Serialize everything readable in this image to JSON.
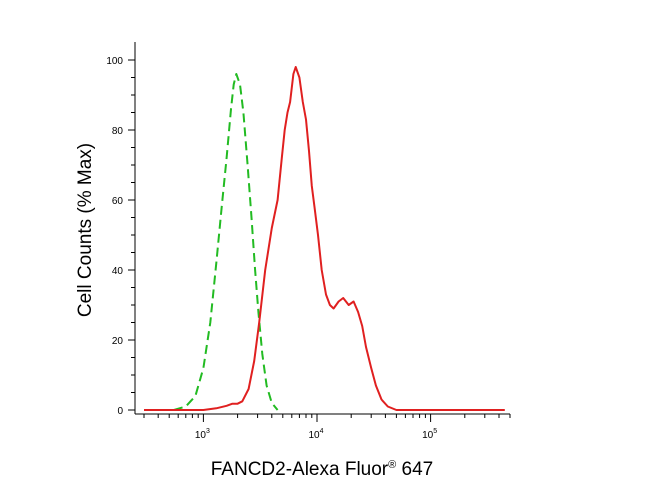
{
  "chart_data": {
    "type": "line",
    "xlabel": "FANCD2-Alexa Fluor",
    "xlabel_reg": "®",
    "xlabel_suffix": " 647",
    "ylabel": "Cell Counts (% Max)",
    "xscale": "log",
    "xlim": [
      250,
      500000
    ],
    "ylim": [
      0,
      100
    ],
    "yticks": [
      {
        "value": 0,
        "label": "0"
      },
      {
        "value": 20,
        "label": "20"
      },
      {
        "value": 40,
        "label": "40"
      },
      {
        "value": 60,
        "label": "60"
      },
      {
        "value": 80,
        "label": "80"
      },
      {
        "value": 100,
        "label": "100"
      }
    ],
    "xticks": [
      {
        "value": 1000,
        "base": "10",
        "exp": "3"
      },
      {
        "value": 10000,
        "base": "10",
        "exp": "4"
      },
      {
        "value": 100000,
        "base": "10",
        "exp": "5"
      }
    ],
    "grid": false,
    "legend": "none",
    "series": [
      {
        "color": "#22bb22",
        "style": "dashed",
        "points": [
          [
            550,
            0
          ],
          [
            700,
            1
          ],
          [
            850,
            4
          ],
          [
            1000,
            12
          ],
          [
            1150,
            25
          ],
          [
            1300,
            42
          ],
          [
            1450,
            58
          ],
          [
            1600,
            72
          ],
          [
            1750,
            86
          ],
          [
            1850,
            93
          ],
          [
            1950,
            96
          ],
          [
            2100,
            93
          ],
          [
            2250,
            85
          ],
          [
            2450,
            70
          ],
          [
            2650,
            55
          ],
          [
            2850,
            40
          ],
          [
            3050,
            28
          ],
          [
            3300,
            16
          ],
          [
            3600,
            7
          ],
          [
            4000,
            2
          ],
          [
            4500,
            0
          ]
        ]
      },
      {
        "color": "#e02020",
        "style": "solid",
        "points": [
          [
            300,
            0
          ],
          [
            1000,
            0
          ],
          [
            1300,
            0.5
          ],
          [
            1600,
            1.2
          ],
          [
            1800,
            1.8
          ],
          [
            2000,
            1.8
          ],
          [
            2200,
            2.5
          ],
          [
            2500,
            6
          ],
          [
            2800,
            14
          ],
          [
            3100,
            25
          ],
          [
            3500,
            40
          ],
          [
            4000,
            52
          ],
          [
            4500,
            60
          ],
          [
            4900,
            72
          ],
          [
            5200,
            80
          ],
          [
            5500,
            85
          ],
          [
            5800,
            88
          ],
          [
            6200,
            96
          ],
          [
            6500,
            98
          ],
          [
            7000,
            95
          ],
          [
            7500,
            88
          ],
          [
            8000,
            83
          ],
          [
            8500,
            74
          ],
          [
            9000,
            64
          ],
          [
            9500,
            58
          ],
          [
            10200,
            50
          ],
          [
            11000,
            40
          ],
          [
            12000,
            33
          ],
          [
            13000,
            30
          ],
          [
            14000,
            29
          ],
          [
            15500,
            31
          ],
          [
            17000,
            32
          ],
          [
            19000,
            30
          ],
          [
            21000,
            31
          ],
          [
            23000,
            28
          ],
          [
            25000,
            24
          ],
          [
            27000,
            18
          ],
          [
            30000,
            12
          ],
          [
            33000,
            7
          ],
          [
            37000,
            3
          ],
          [
            42000,
            1
          ],
          [
            50000,
            0
          ],
          [
            150000,
            0
          ],
          [
            450000,
            0
          ]
        ]
      }
    ]
  }
}
